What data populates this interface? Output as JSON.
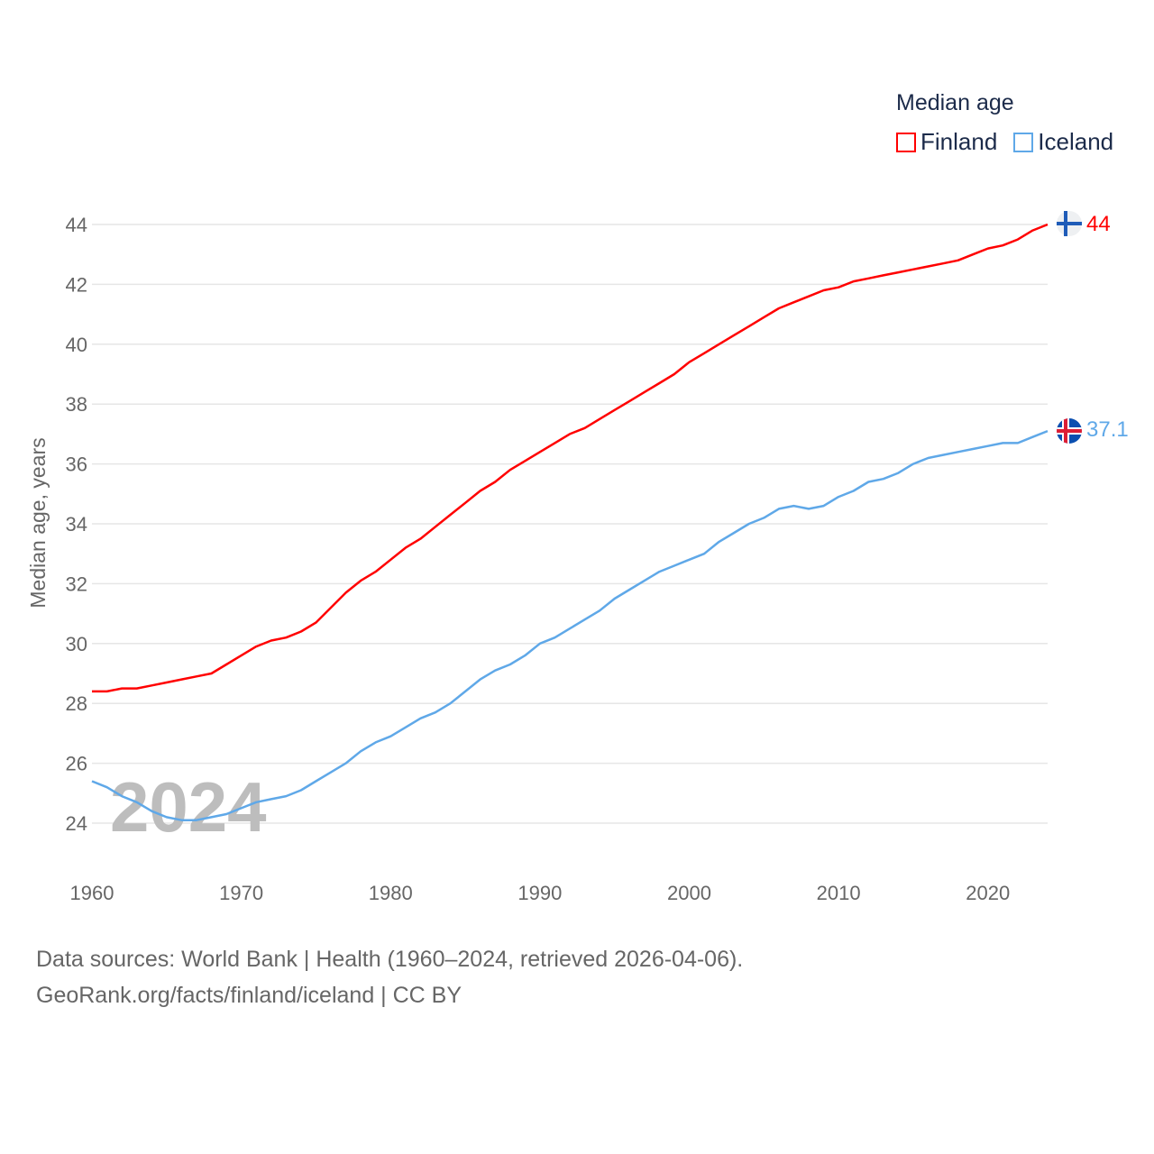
{
  "chart_data": {
    "type": "line",
    "title": "Median age",
    "xlabel": "",
    "ylabel": "Median age, years",
    "xlim": [
      1960,
      2024
    ],
    "ylim": [
      24,
      44
    ],
    "x_ticks": [
      "1960",
      "1970",
      "1980",
      "1990",
      "2000",
      "2010",
      "2020"
    ],
    "y_ticks": [
      "24",
      "26",
      "28",
      "30",
      "32",
      "34",
      "36",
      "38",
      "40",
      "42",
      "44"
    ],
    "grid": true,
    "legend_placement": "top-right",
    "watermark_year": "2024",
    "x": [
      1960,
      1961,
      1962,
      1963,
      1964,
      1965,
      1966,
      1967,
      1968,
      1969,
      1970,
      1971,
      1972,
      1973,
      1974,
      1975,
      1976,
      1977,
      1978,
      1979,
      1980,
      1981,
      1982,
      1983,
      1984,
      1985,
      1986,
      1987,
      1988,
      1989,
      1990,
      1991,
      1992,
      1993,
      1994,
      1995,
      1996,
      1997,
      1998,
      1999,
      2000,
      2001,
      2002,
      2003,
      2004,
      2005,
      2006,
      2007,
      2008,
      2009,
      2010,
      2011,
      2012,
      2013,
      2014,
      2015,
      2016,
      2017,
      2018,
      2019,
      2020,
      2021,
      2022,
      2023,
      2024
    ],
    "series": [
      {
        "name": "Finland",
        "color": "#ff0000",
        "end_label": "44",
        "values": [
          28.4,
          28.4,
          28.5,
          28.5,
          28.6,
          28.7,
          28.8,
          28.9,
          29.0,
          29.3,
          29.6,
          29.9,
          30.1,
          30.2,
          30.4,
          30.7,
          31.2,
          31.7,
          32.1,
          32.4,
          32.8,
          33.2,
          33.5,
          33.9,
          34.3,
          34.7,
          35.1,
          35.4,
          35.8,
          36.1,
          36.4,
          36.7,
          37.0,
          37.2,
          37.5,
          37.8,
          38.1,
          38.4,
          38.7,
          39.0,
          39.4,
          39.7,
          40.0,
          40.3,
          40.6,
          40.9,
          41.2,
          41.4,
          41.6,
          41.8,
          41.9,
          42.1,
          42.2,
          42.3,
          42.4,
          42.5,
          42.6,
          42.7,
          42.8,
          43.0,
          43.2,
          43.3,
          43.5,
          43.8,
          44.0
        ]
      },
      {
        "name": "Iceland",
        "color": "#5fa8e8",
        "end_label": "37.1",
        "values": [
          25.4,
          25.2,
          24.9,
          24.7,
          24.4,
          24.2,
          24.1,
          24.1,
          24.2,
          24.3,
          24.5,
          24.7,
          24.8,
          24.9,
          25.1,
          25.4,
          25.7,
          26.0,
          26.4,
          26.7,
          26.9,
          27.2,
          27.5,
          27.7,
          28.0,
          28.4,
          28.8,
          29.1,
          29.3,
          29.6,
          30.0,
          30.2,
          30.5,
          30.8,
          31.1,
          31.5,
          31.8,
          32.1,
          32.4,
          32.6,
          32.8,
          33.0,
          33.4,
          33.7,
          34.0,
          34.2,
          34.5,
          34.6,
          34.5,
          34.6,
          34.9,
          35.1,
          35.4,
          35.5,
          35.7,
          36.0,
          36.2,
          36.3,
          36.4,
          36.5,
          36.6,
          36.7,
          36.7,
          36.9,
          37.1
        ]
      }
    ]
  },
  "footer": {
    "line1": "Data sources: World Bank | Health (1960–2024, retrieved 2026-04-06).",
    "line2": "GeoRank.org/facts/finland/iceland | CC BY"
  }
}
